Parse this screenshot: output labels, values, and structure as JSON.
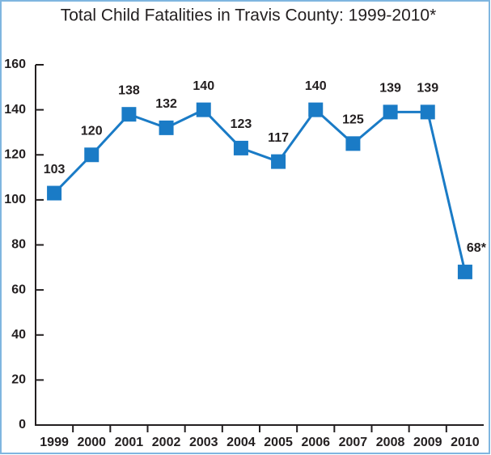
{
  "chart_data": {
    "type": "line",
    "title": "Total Child Fatalities in Travis County: 1999-2010*",
    "categories": [
      "1999",
      "2000",
      "2001",
      "2002",
      "2003",
      "2004",
      "2005",
      "2006",
      "2007",
      "2008",
      "2009",
      "2010"
    ],
    "values": [
      103,
      120,
      138,
      132,
      140,
      123,
      117,
      140,
      125,
      139,
      139,
      68
    ],
    "value_labels": [
      "103",
      "120",
      "138",
      "132",
      "140",
      "123",
      "117",
      "140",
      "125",
      "139",
      "139",
      "68*"
    ],
    "color": "#1a7bc6",
    "ylim": [
      0,
      160
    ],
    "yticks": [
      0,
      20,
      40,
      60,
      80,
      100,
      120,
      140,
      160
    ],
    "grid": false
  }
}
